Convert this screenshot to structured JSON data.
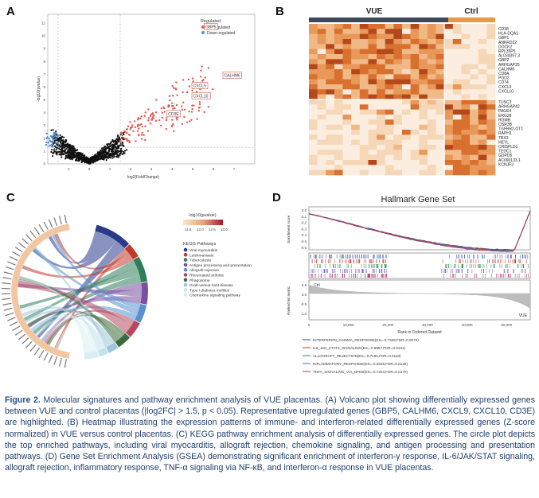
{
  "panels": {
    "a": {
      "letter": "A",
      "xlabel": "log2(FoldChange)",
      "ylabel": "-log10(pvalue)",
      "legend_title": "Regulated",
      "legend_up": "Up-regulated",
      "legend_down": "Down-regulated",
      "genes": [
        "GBP5",
        "CALHM6",
        "CXCL9",
        "CXCL10",
        "CD3E"
      ],
      "yticks": [
        "0",
        "1",
        "2",
        "3",
        "4",
        "5",
        "6",
        "7",
        "8",
        "9",
        "10",
        "11"
      ],
      "xticks": [
        "-1",
        "0",
        "1",
        "2",
        "3",
        "4",
        "5",
        "6",
        "7"
      ]
    },
    "b": {
      "letter": "B",
      "group_vue": "VUE",
      "group_ctrl": "Ctrl",
      "genes_top": [
        "CD38",
        "HLA-DQA1",
        "GBP1",
        "ANKRD22",
        "DOCK2",
        "RPL35P5",
        "AL034397.3",
        "GBP2",
        "ARHGAP25",
        "CALHM6",
        "CD8A",
        "PGD2",
        "CD74",
        "CXCL9",
        "CXCL10"
      ],
      "genes_bottom": [
        "TUSC3",
        "ARHGAP42",
        "PAGE4",
        "ERG28",
        "RGMB",
        "OSR3B",
        "TGFBR2-OT1",
        "RAPH1",
        "TBX3",
        "HEYL",
        "CRISPLD1",
        "TEDC1",
        "GDPD5",
        "AC090133.1",
        "KCNJF3"
      ]
    },
    "c": {
      "letter": "C",
      "scale_label": "-log10(pvalue)",
      "scale_ticks": [
        "11.5",
        "12.0",
        "12.5",
        "13.0"
      ],
      "legend_title": "KEGG Pathways",
      "pathways": [
        {
          "name": "Viral myocarditis",
          "color": "#2a3a8a"
        },
        {
          "name": "Leishmaniasis",
          "color": "#c0392b"
        },
        {
          "name": "Tuberculosis",
          "color": "#2f7d5b"
        },
        {
          "name": "Antigen processing and presentation",
          "color": "#7a4fa0"
        },
        {
          "name": "Allograft rejection",
          "color": "#5a8fd0"
        },
        {
          "name": "Rheumatoid arthritis",
          "color": "#b5485f"
        },
        {
          "name": "Phagosome",
          "color": "#3d6b3d"
        },
        {
          "name": "Graft-versus-host disease",
          "color": "#9fc5d8"
        },
        {
          "name": "Type I diabetes mellitus",
          "color": "#bfe3ea"
        },
        {
          "name": "Chemokine signaling pathway",
          "color": "#d8eef2"
        }
      ]
    },
    "d": {
      "letter": "D",
      "title": "Hallmark Gene Set",
      "ylabel_top": "Enrichment score",
      "ylabel_bottom": "Ranked list metric",
      "xlabel": "Rank in Ordered Dataset",
      "label_ctrl": "Ctrl",
      "label_vue": "VUE",
      "es_ticks": [
        "0.0",
        "-0.1",
        "-0.2",
        "-0.3",
        "-0.4",
        "-0.5",
        "-0.6"
      ],
      "rank_ticks": [
        "0.5",
        "0.0",
        "-0.5",
        "-1.0"
      ],
      "x_ticks": [
        "0",
        "10,000",
        "20,000",
        "30,000",
        "40,000",
        "50,000"
      ],
      "legend": [
        {
          "text": "INTERFERON_GAMMA_RESPONSE(ES=-0.7328,FDR=0.0072)",
          "color": "#2b4a9a"
        },
        {
          "text": "IL6_JAK_STAT3_SIGNALING(ES=-0.6857,FDR=0.0131)",
          "color": "#c0392b"
        },
        {
          "text": "ALLOGRAFT_REJECTION(ES=-0.7194,FDR=0.0118)",
          "color": "#2e8b57"
        },
        {
          "text": "INFLAMMATORY_RESPONSE(ES=-0.6535,FDR=0.0129)",
          "color": "#6a5acd"
        },
        {
          "text": "TNFA_SIGNALING_VIA_NFKB(ES=-0.7233,FDR=0.0170)",
          "color": "#b03060"
        }
      ]
    }
  },
  "caption": {
    "figure": "Figure 2.",
    "text": "Molecular signatures and pathway enrichment analysis of VUE placentas. (A) Volcano plot showing differentially expressed genes between VUE and control placentas (|log2FC| > 1.5, p < 0.05). Representative upregulated genes (GBP5, CALHM6, CXCL9, CXCL10, CD3E) are highlighted. (B) Heatmap illustrating the expression patterns of immune- and interferon-related differentially expressed genes (Z-score normalized) in VUE versus control placentas. (C) KEGG pathway enrichment analysis of differentially expressed genes. The circle plot depicts the top enriched pathways, including viral myocarditis, allograft rejection, chemokine signaling, and antigen processing and presentation pathways. (D) Gene Set Enrichment Analysis (GSEA) demonstrating significant enrichment of interferon-γ response, IL-6/JAK/STAT signaling, allograft rejection, inflammatory response, TNF-α signaling via NF-κB, and interferon-α response in VUE placentas."
  }
}
